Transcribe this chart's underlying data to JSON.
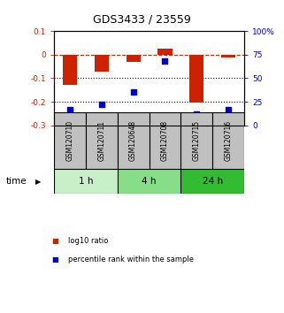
{
  "title": "GDS3433 / 23559",
  "samples": [
    "GSM120710",
    "GSM120711",
    "GSM120648",
    "GSM120708",
    "GSM120715",
    "GSM120716"
  ],
  "log10_ratio": [
    -0.13,
    -0.07,
    -0.03,
    0.025,
    -0.205,
    -0.01
  ],
  "percentile_rank": [
    17,
    22,
    35,
    68,
    12,
    17
  ],
  "bar_color": "#cc2200",
  "dot_color": "#0000cc",
  "left_ylim": [
    -0.3,
    0.1
  ],
  "right_ylim": [
    0,
    100
  ],
  "left_yticks": [
    -0.3,
    -0.2,
    -0.1,
    0.0,
    0.1
  ],
  "left_yticklabels": [
    "-0.3",
    "-0.2",
    "-0.1",
    "0",
    "0.1"
  ],
  "right_yticks": [
    0,
    25,
    50,
    75,
    100
  ],
  "right_yticklabels": [
    "0",
    "25",
    "50",
    "75",
    "100%"
  ],
  "dotted_lines": [
    -0.1,
    -0.2
  ],
  "dashed_line": 0.0,
  "time_groups": [
    {
      "label": "1 h",
      "indices": [
        0,
        1
      ],
      "color": "#c8f0c8"
    },
    {
      "label": "4 h",
      "indices": [
        2,
        3
      ],
      "color": "#88dd88"
    },
    {
      "label": "24 h",
      "indices": [
        4,
        5
      ],
      "color": "#33bb33"
    }
  ],
  "legend_items": [
    {
      "label": "log10 ratio",
      "color": "#cc2200"
    },
    {
      "label": "percentile rank within the sample",
      "color": "#0000cc"
    }
  ],
  "bar_width": 0.45,
  "xlabel_time": "time",
  "sample_box_color": "#c0c0c0",
  "figsize": [
    3.21,
    3.54
  ],
  "dpi": 100
}
